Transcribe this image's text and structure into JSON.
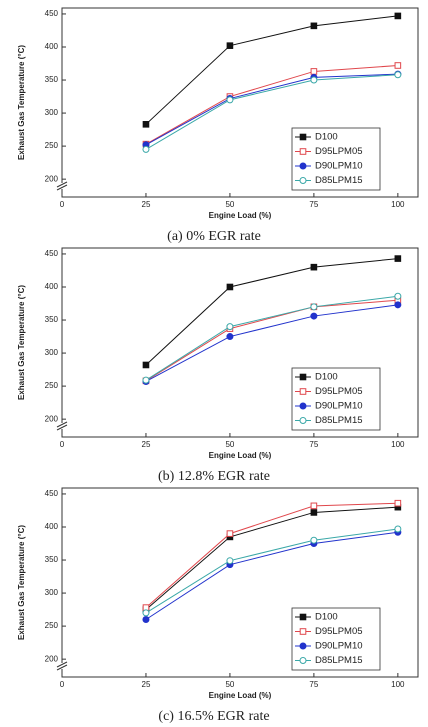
{
  "chart_data": [
    {
      "type": "line",
      "caption": "(a)  0% EGR rate",
      "xlabel": "Engine Load (%)",
      "ylabel": "Exhaust Gas Temperature (°C)",
      "x": [
        25,
        50,
        75,
        100
      ],
      "xlim": [
        0,
        106
      ],
      "xticks": [
        0,
        25,
        50,
        75,
        100
      ],
      "ylim": [
        173,
        459
      ],
      "yticks": [
        200,
        250,
        300,
        350,
        400,
        450
      ],
      "legend": "lower right",
      "axis_break": true,
      "series": [
        {
          "name": "D100",
          "color": "#111111",
          "marker": "square",
          "filled": true,
          "values": [
            283,
            402,
            432,
            447
          ]
        },
        {
          "name": "D95LPM05",
          "color": "#e0474c",
          "marker": "square",
          "filled": false,
          "values": [
            253,
            325,
            363,
            372
          ]
        },
        {
          "name": "D90LPM10",
          "color": "#2233cc",
          "marker": "circle",
          "filled": true,
          "values": [
            252,
            322,
            354,
            359
          ]
        },
        {
          "name": "D85LPM15",
          "color": "#3aa8a8",
          "marker": "circle",
          "filled": false,
          "values": [
            245,
            320,
            350,
            358
          ]
        }
      ]
    },
    {
      "type": "line",
      "caption": "(b)  12.8%  EGR rate",
      "xlabel": "Engine Load (%)",
      "ylabel": "Exhaust Gas Temperature (°C)",
      "x": [
        25,
        50,
        75,
        100
      ],
      "xlim": [
        0,
        106
      ],
      "xticks": [
        0,
        25,
        50,
        75,
        100
      ],
      "ylim": [
        173,
        459
      ],
      "yticks": [
        200,
        250,
        300,
        350,
        400,
        450
      ],
      "legend": "lower right",
      "axis_break": true,
      "series": [
        {
          "name": "D100",
          "color": "#111111",
          "marker": "square",
          "filled": true,
          "values": [
            282,
            400,
            430,
            443
          ]
        },
        {
          "name": "D95LPM05",
          "color": "#e0474c",
          "marker": "square",
          "filled": false,
          "values": [
            258,
            337,
            370,
            380
          ]
        },
        {
          "name": "D90LPM10",
          "color": "#2233cc",
          "marker": "circle",
          "filled": true,
          "values": [
            257,
            325,
            356,
            373
          ]
        },
        {
          "name": "D85LPM15",
          "color": "#3aa8a8",
          "marker": "circle",
          "filled": false,
          "values": [
            259,
            340,
            370,
            386
          ]
        }
      ]
    },
    {
      "type": "line",
      "caption": "(c)  16.5%  EGR rate",
      "xlabel": "Engine Load (%)",
      "ylabel": "Exhaust Gas Temperature (°C)",
      "x": [
        25,
        50,
        75,
        100
      ],
      "xlim": [
        0,
        106
      ],
      "xticks": [
        0,
        25,
        50,
        75,
        100
      ],
      "ylim": [
        173,
        459
      ],
      "yticks": [
        200,
        250,
        300,
        350,
        400,
        450
      ],
      "legend": "lower right",
      "axis_break": true,
      "series": [
        {
          "name": "D100",
          "color": "#111111",
          "marker": "square",
          "filled": true,
          "values": [
            275,
            385,
            422,
            430
          ]
        },
        {
          "name": "D95LPM05",
          "color": "#e0474c",
          "marker": "square",
          "filled": false,
          "values": [
            278,
            390,
            432,
            436
          ]
        },
        {
          "name": "D90LPM10",
          "color": "#2233cc",
          "marker": "circle",
          "filled": true,
          "values": [
            260,
            343,
            375,
            392
          ]
        },
        {
          "name": "D85LPM15",
          "color": "#3aa8a8",
          "marker": "circle",
          "filled": false,
          "values": [
            270,
            349,
            380,
            397
          ]
        }
      ]
    }
  ]
}
